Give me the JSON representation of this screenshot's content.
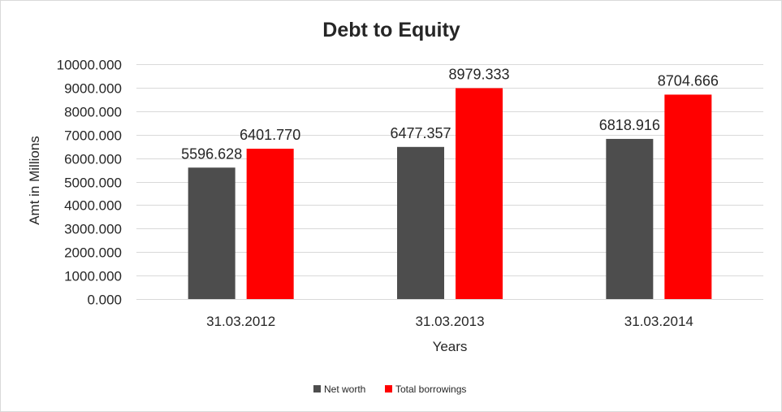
{
  "chart_data": {
    "type": "bar",
    "title": "Debt to Equity",
    "xlabel": "Years",
    "ylabel": "Amt in Millions",
    "categories": [
      "31.03.2012",
      "31.03.2013",
      "31.03.2014"
    ],
    "series": [
      {
        "name": "Net worth",
        "color": "#4d4d4d",
        "values": [
          5596.628,
          6477.357,
          6818.916
        ],
        "labels": [
          "5596.628",
          "6477.357",
          "6818.916"
        ]
      },
      {
        "name": "Total borrowings",
        "color": "#ff0000",
        "values": [
          6401.77,
          8979.333,
          8704.666
        ],
        "labels": [
          "6401.770",
          "8979.333",
          "8704.666"
        ]
      }
    ],
    "ylim": [
      0,
      10000
    ],
    "yticks": [
      0,
      1000,
      2000,
      3000,
      4000,
      5000,
      6000,
      7000,
      8000,
      9000,
      10000
    ],
    "ytick_labels": [
      "0.000",
      "1000.000",
      "2000.000",
      "3000.000",
      "4000.000",
      "5000.000",
      "6000.000",
      "7000.000",
      "8000.000",
      "9000.000",
      "10000.000"
    ],
    "grid": true,
    "legend_position": "bottom"
  }
}
